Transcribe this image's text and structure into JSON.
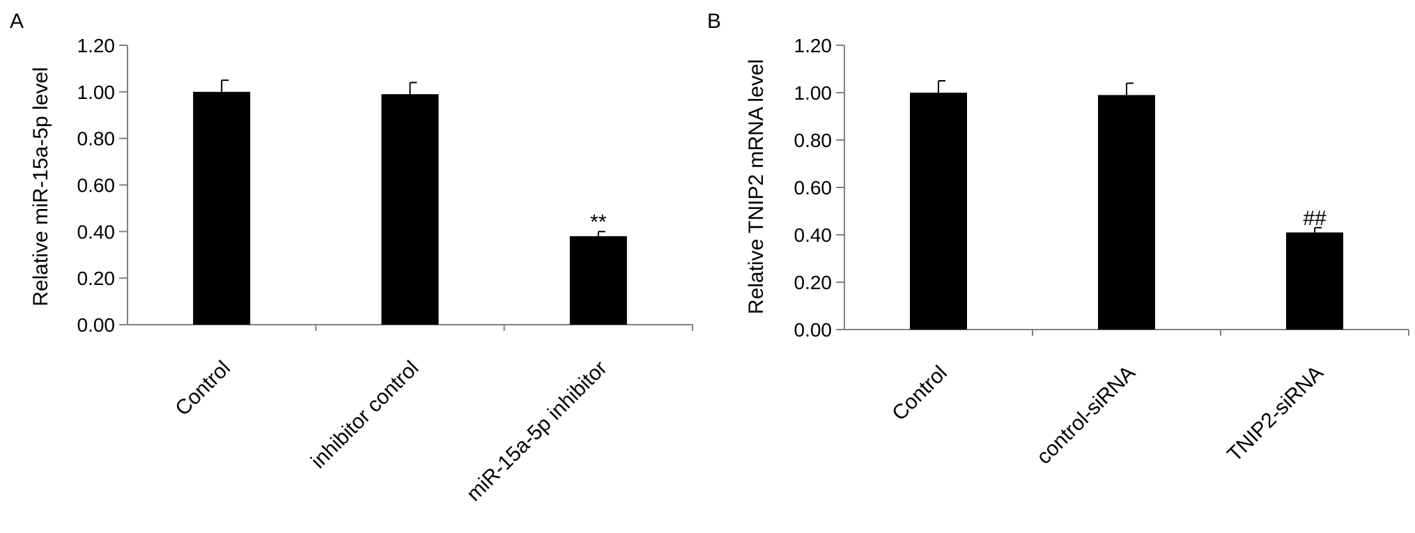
{
  "chart_data": [
    {
      "panel_label": "A",
      "type": "bar",
      "categories": [
        "Control",
        "inhibitor control",
        "miR-15a-5p inhibitor"
      ],
      "values": [
        1.0,
        0.99,
        0.38
      ],
      "errors": [
        0.05,
        0.05,
        0.02
      ],
      "annotations": [
        "",
        "",
        "**"
      ],
      "ylabel": "Relative miR-15a-5p level",
      "xlabel": "",
      "ylim": [
        0,
        1.2
      ],
      "yticks": [
        "0.00",
        "0.20",
        "0.40",
        "0.60",
        "0.80",
        "1.00",
        "1.20"
      ],
      "grid": false,
      "legend": "none",
      "bar_color": "#000000"
    },
    {
      "panel_label": "B",
      "type": "bar",
      "categories": [
        "Control",
        "control-siRNA",
        "TNIP2-siRNA"
      ],
      "values": [
        1.0,
        0.99,
        0.41
      ],
      "errors": [
        0.05,
        0.05,
        0.02
      ],
      "annotations": [
        "",
        "",
        "##"
      ],
      "ylabel": "Relative TNIP2 mRNA level",
      "xlabel": "",
      "ylim": [
        0,
        1.2
      ],
      "yticks": [
        "0.00",
        "0.20",
        "0.40",
        "0.60",
        "0.80",
        "1.00",
        "1.20"
      ],
      "grid": false,
      "legend": "none",
      "bar_color": "#000000"
    }
  ]
}
